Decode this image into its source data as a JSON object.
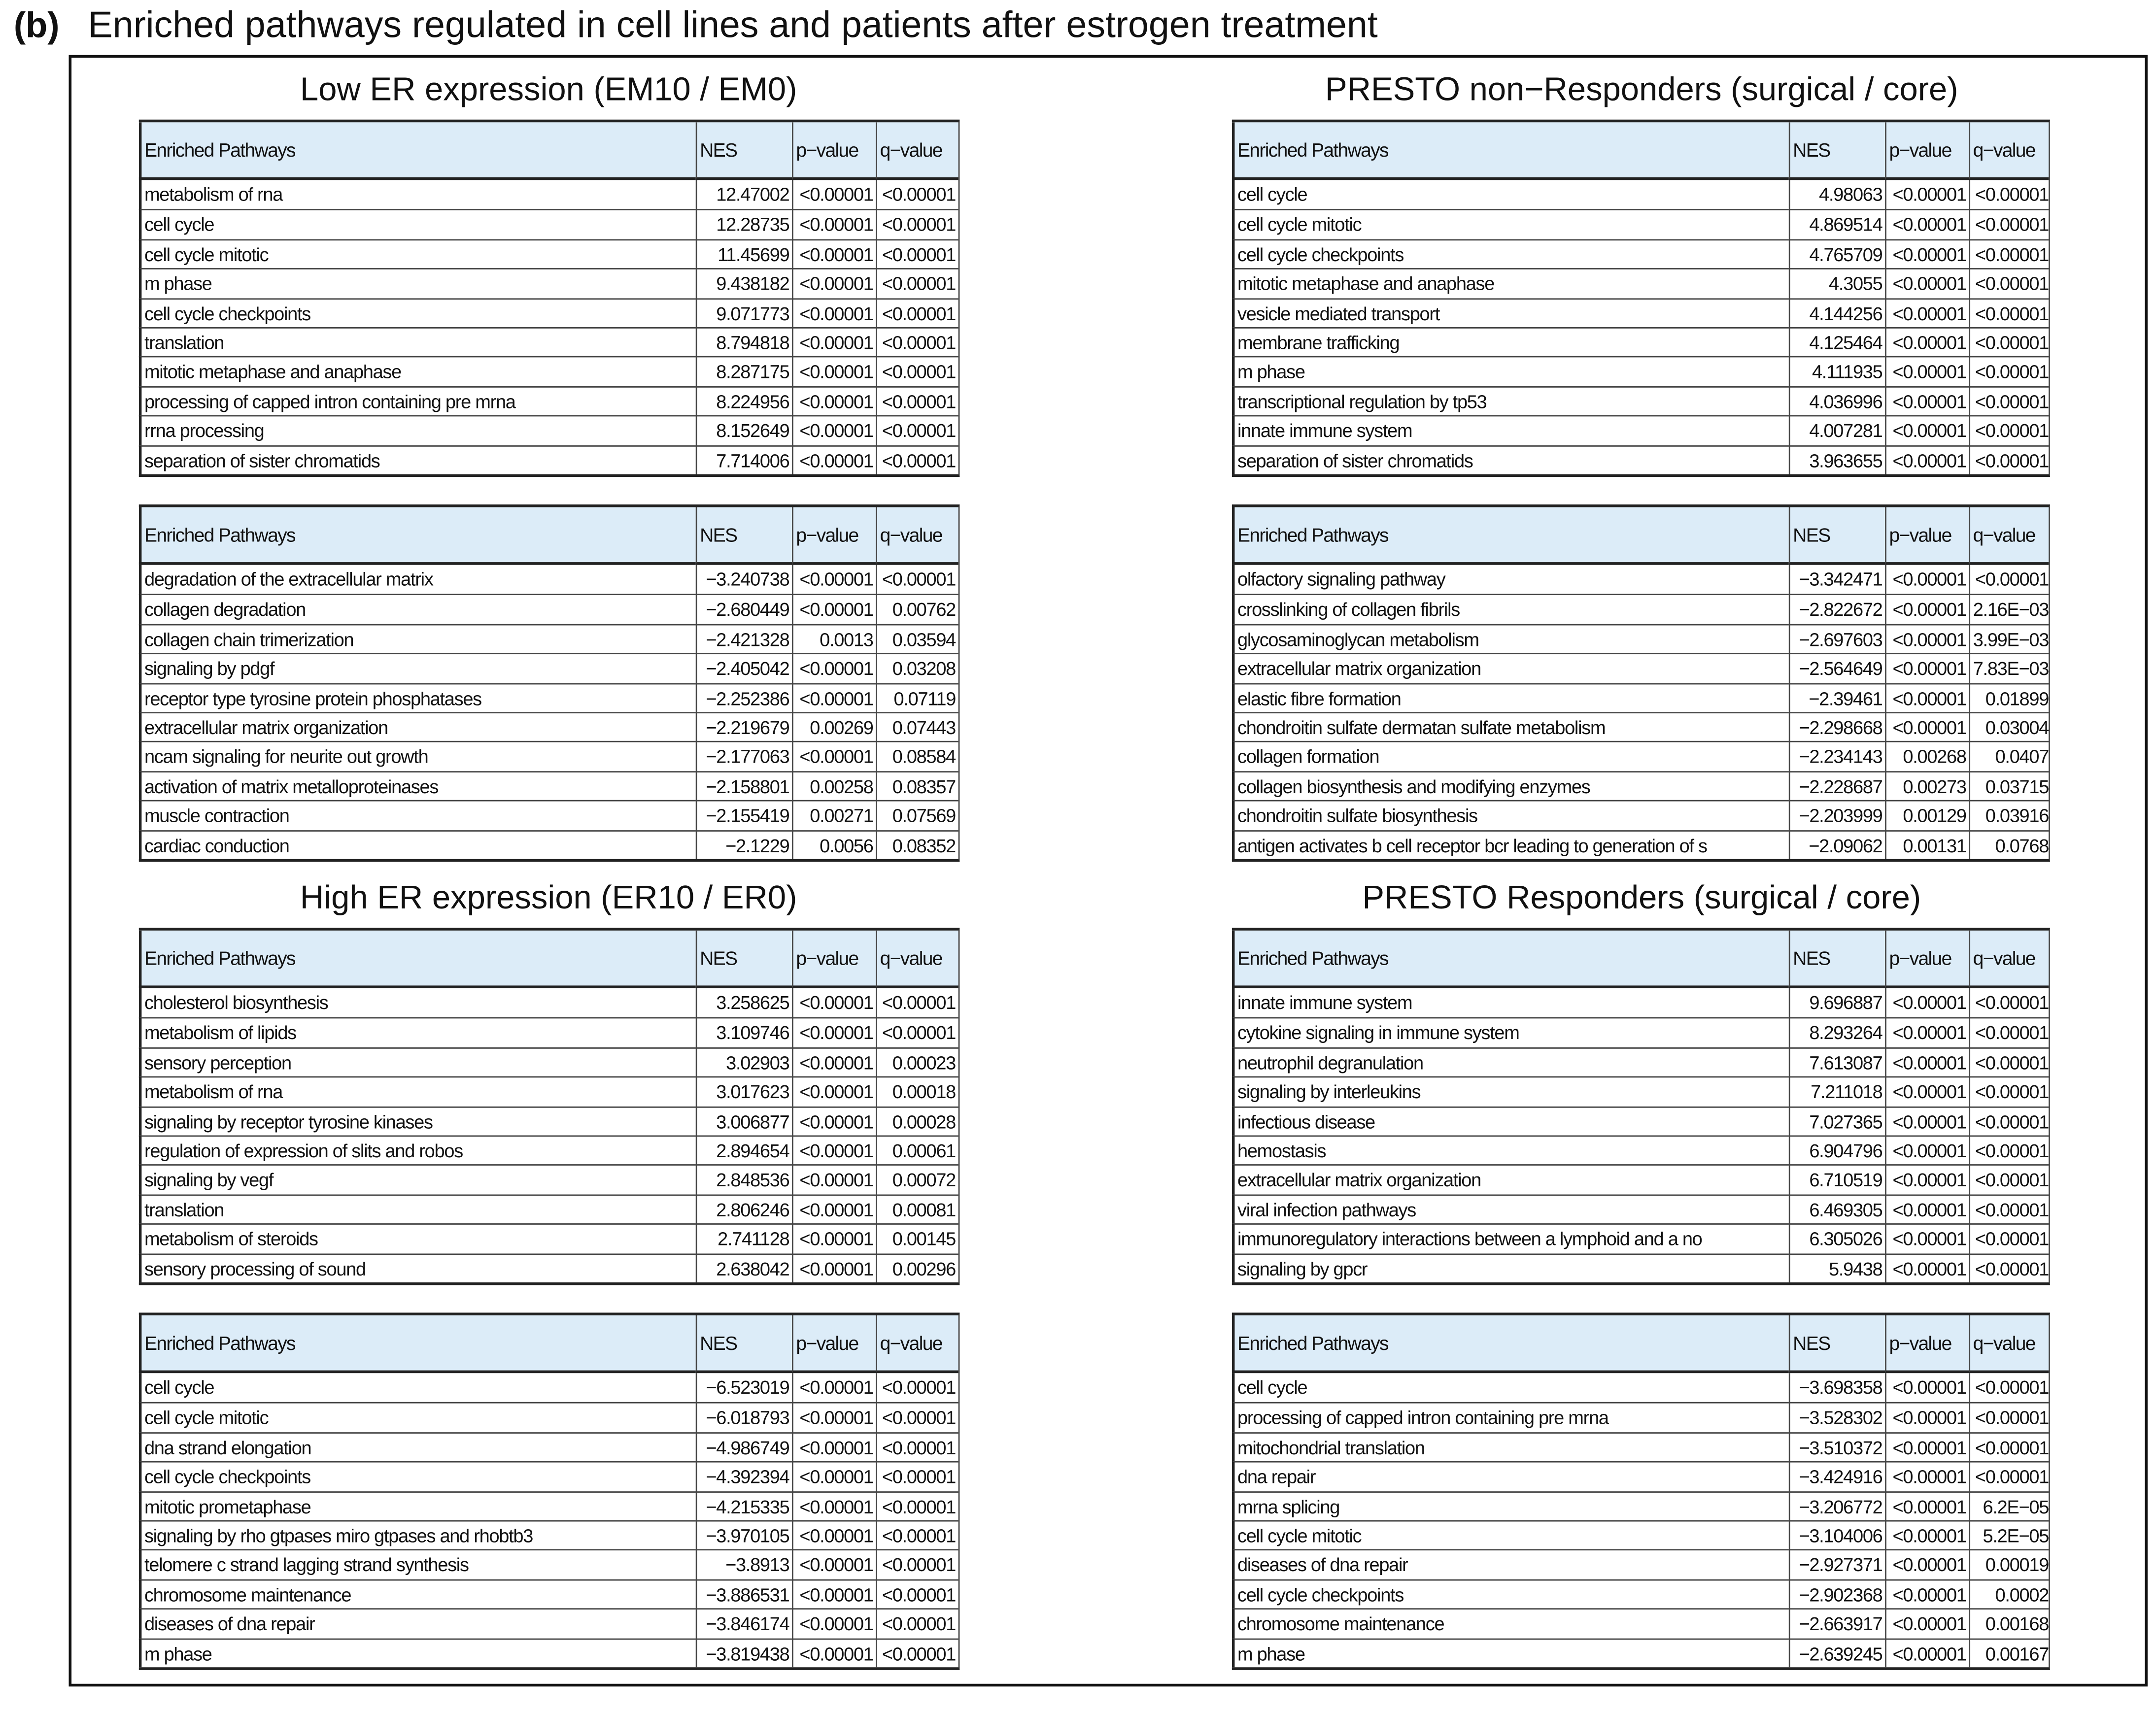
{
  "header": {
    "label": "(b)",
    "title": "Enriched pathways regulated in cell lines and patients after estrogen treatment"
  },
  "table_header": [
    "Enriched Pathways",
    "NES",
    "p−value",
    "q−value"
  ],
  "panels": [
    {
      "title": "Low ER expression (EM10 / EM0)",
      "tables": [
        {
          "rows": [
            [
              "metabolism of rna",
              "12.47002",
              "<0.00001",
              "<0.00001"
            ],
            [
              "cell cycle",
              "12.28735",
              "<0.00001",
              "<0.00001"
            ],
            [
              "cell cycle mitotic",
              "11.45699",
              "<0.00001",
              "<0.00001"
            ],
            [
              "m phase",
              "9.438182",
              "<0.00001",
              "<0.00001"
            ],
            [
              "cell cycle checkpoints",
              "9.071773",
              "<0.00001",
              "<0.00001"
            ],
            [
              "translation",
              "8.794818",
              "<0.00001",
              "<0.00001"
            ],
            [
              "mitotic metaphase and anaphase",
              "8.287175",
              "<0.00001",
              "<0.00001"
            ],
            [
              "processing of capped intron containing pre mrna",
              "8.224956",
              "<0.00001",
              "<0.00001"
            ],
            [
              "rrna processing",
              "8.152649",
              "<0.00001",
              "<0.00001"
            ],
            [
              "separation of sister chromatids",
              "7.714006",
              "<0.00001",
              "<0.00001"
            ]
          ]
        },
        {
          "rows": [
            [
              "degradation of the extracellular matrix",
              "−3.240738",
              "<0.00001",
              "<0.00001"
            ],
            [
              "collagen degradation",
              "−2.680449",
              "<0.00001",
              "0.00762"
            ],
            [
              "collagen chain trimerization",
              "−2.421328",
              "0.0013",
              "0.03594"
            ],
            [
              "signaling by pdgf",
              "−2.405042",
              "<0.00001",
              "0.03208"
            ],
            [
              "receptor type tyrosine protein phosphatases",
              "−2.252386",
              "<0.00001",
              "0.07119"
            ],
            [
              "extracellular matrix organization",
              "−2.219679",
              "0.00269",
              "0.07443"
            ],
            [
              "ncam signaling for neurite out growth",
              "−2.177063",
              "<0.00001",
              "0.08584"
            ],
            [
              "activation of matrix metalloproteinases",
              "−2.158801",
              "0.00258",
              "0.08357"
            ],
            [
              "muscle contraction",
              "−2.155419",
              "0.00271",
              "0.07569"
            ],
            [
              "cardiac conduction",
              "−2.1229",
              "0.0056",
              "0.08352"
            ]
          ]
        }
      ]
    },
    {
      "title": "PRESTO non−Responders (surgical / core)",
      "tables": [
        {
          "rows": [
            [
              "cell cycle",
              "4.98063",
              "<0.00001",
              "<0.00001"
            ],
            [
              "cell cycle mitotic",
              "4.869514",
              "<0.00001",
              "<0.00001"
            ],
            [
              "cell cycle checkpoints",
              "4.765709",
              "<0.00001",
              "<0.00001"
            ],
            [
              "mitotic metaphase and anaphase",
              "4.3055",
              "<0.00001",
              "<0.00001"
            ],
            [
              "vesicle mediated transport",
              "4.144256",
              "<0.00001",
              "<0.00001"
            ],
            [
              "membrane trafficking",
              "4.125464",
              "<0.00001",
              "<0.00001"
            ],
            [
              "m phase",
              "4.111935",
              "<0.00001",
              "<0.00001"
            ],
            [
              "transcriptional regulation by tp53",
              "4.036996",
              "<0.00001",
              "<0.00001"
            ],
            [
              "innate immune system",
              "4.007281",
              "<0.00001",
              "<0.00001"
            ],
            [
              "separation of sister chromatids",
              "3.963655",
              "<0.00001",
              "<0.00001"
            ]
          ]
        },
        {
          "rows": [
            [
              "olfactory signaling pathway",
              "−3.342471",
              "<0.00001",
              "<0.00001"
            ],
            [
              "crosslinking of collagen fibrils",
              "−2.822672",
              "<0.00001",
              "2.16E−03"
            ],
            [
              "glycosaminoglycan metabolism",
              "−2.697603",
              "<0.00001",
              "3.99E−03"
            ],
            [
              "extracellular matrix organization",
              "−2.564649",
              "<0.00001",
              "7.83E−03"
            ],
            [
              "elastic fibre formation",
              "−2.39461",
              "<0.00001",
              "0.01899"
            ],
            [
              "chondroitin sulfate dermatan sulfate metabolism",
              "−2.298668",
              "<0.00001",
              "0.03004"
            ],
            [
              "collagen formation",
              "−2.234143",
              "0.00268",
              "0.0407"
            ],
            [
              "collagen biosynthesis and modifying enzymes",
              "−2.228687",
              "0.00273",
              "0.03715"
            ],
            [
              "chondroitin sulfate biosynthesis",
              "−2.203999",
              "0.00129",
              "0.03916"
            ],
            [
              "antigen activates b cell receptor bcr leading to generation of s",
              "−2.09062",
              "0.00131",
              "0.0768"
            ]
          ]
        }
      ]
    },
    {
      "title": "High ER expression (ER10 / ER0)",
      "tables": [
        {
          "rows": [
            [
              "cholesterol biosynthesis",
              "3.258625",
              "<0.00001",
              "<0.00001"
            ],
            [
              "metabolism of lipids",
              "3.109746",
              "<0.00001",
              "<0.00001"
            ],
            [
              "sensory perception",
              "3.02903",
              "<0.00001",
              "0.00023"
            ],
            [
              "metabolism of rna",
              "3.017623",
              "<0.00001",
              "0.00018"
            ],
            [
              "signaling by receptor tyrosine kinases",
              "3.006877",
              "<0.00001",
              "0.00028"
            ],
            [
              "regulation of expression of slits and robos",
              "2.894654",
              "<0.00001",
              "0.00061"
            ],
            [
              "signaling by vegf",
              "2.848536",
              "<0.00001",
              "0.00072"
            ],
            [
              "translation",
              "2.806246",
              "<0.00001",
              "0.00081"
            ],
            [
              "metabolism of steroids",
              "2.741128",
              "<0.00001",
              "0.00145"
            ],
            [
              "sensory processing of sound",
              "2.638042",
              "<0.00001",
              "0.00296"
            ]
          ]
        },
        {
          "rows": [
            [
              "cell cycle",
              "−6.523019",
              "<0.00001",
              "<0.00001"
            ],
            [
              "cell cycle mitotic",
              "−6.018793",
              "<0.00001",
              "<0.00001"
            ],
            [
              "dna strand elongation",
              "−4.986749",
              "<0.00001",
              "<0.00001"
            ],
            [
              "cell cycle checkpoints",
              "−4.392394",
              "<0.00001",
              "<0.00001"
            ],
            [
              "mitotic prometaphase",
              "−4.215335",
              "<0.00001",
              "<0.00001"
            ],
            [
              "signaling by rho gtpases miro gtpases and rhobtb3",
              "−3.970105",
              "<0.00001",
              "<0.00001"
            ],
            [
              "telomere c strand lagging strand synthesis",
              "−3.8913",
              "<0.00001",
              "<0.00001"
            ],
            [
              "chromosome maintenance",
              "−3.886531",
              "<0.00001",
              "<0.00001"
            ],
            [
              "diseases of dna repair",
              "−3.846174",
              "<0.00001",
              "<0.00001"
            ],
            [
              "m phase",
              "−3.819438",
              "<0.00001",
              "<0.00001"
            ]
          ]
        }
      ]
    },
    {
      "title": "PRESTO Responders (surgical / core)",
      "tables": [
        {
          "rows": [
            [
              "innate immune system",
              "9.696887",
              "<0.00001",
              "<0.00001"
            ],
            [
              "cytokine signaling in immune system",
              "8.293264",
              "<0.00001",
              "<0.00001"
            ],
            [
              "neutrophil degranulation",
              "7.613087",
              "<0.00001",
              "<0.00001"
            ],
            [
              "signaling by interleukins",
              "7.211018",
              "<0.00001",
              "<0.00001"
            ],
            [
              "infectious disease",
              "7.027365",
              "<0.00001",
              "<0.00001"
            ],
            [
              "hemostasis",
              "6.904796",
              "<0.00001",
              "<0.00001"
            ],
            [
              "extracellular matrix organization",
              "6.710519",
              "<0.00001",
              "<0.00001"
            ],
            [
              "viral infection pathways",
              "6.469305",
              "<0.00001",
              "<0.00001"
            ],
            [
              "immunoregulatory interactions between a lymphoid and a no",
              "6.305026",
              "<0.00001",
              "<0.00001"
            ],
            [
              "signaling by gpcr",
              "5.9438",
              "<0.00001",
              "<0.00001"
            ]
          ]
        },
        {
          "rows": [
            [
              "cell cycle",
              "−3.698358",
              "<0.00001",
              "<0.00001"
            ],
            [
              "processing of capped intron containing pre mrna",
              "−3.528302",
              "<0.00001",
              "<0.00001"
            ],
            [
              "mitochondrial translation",
              "−3.510372",
              "<0.00001",
              "<0.00001"
            ],
            [
              "dna repair",
              "−3.424916",
              "<0.00001",
              "<0.00001"
            ],
            [
              "mrna splicing",
              "−3.206772",
              "<0.00001",
              "6.2E−05"
            ],
            [
              "cell cycle mitotic",
              "−3.104006",
              "<0.00001",
              "5.2E−05"
            ],
            [
              "diseases of dna repair",
              "−2.927371",
              "<0.00001",
              "0.00019"
            ],
            [
              "cell cycle checkpoints",
              "−2.902368",
              "<0.00001",
              "0.0002"
            ],
            [
              "chromosome maintenance",
              "−2.663917",
              "<0.00001",
              "0.00168"
            ],
            [
              "m phase",
              "−2.639245",
              "<0.00001",
              "0.00167"
            ]
          ]
        }
      ]
    }
  ]
}
